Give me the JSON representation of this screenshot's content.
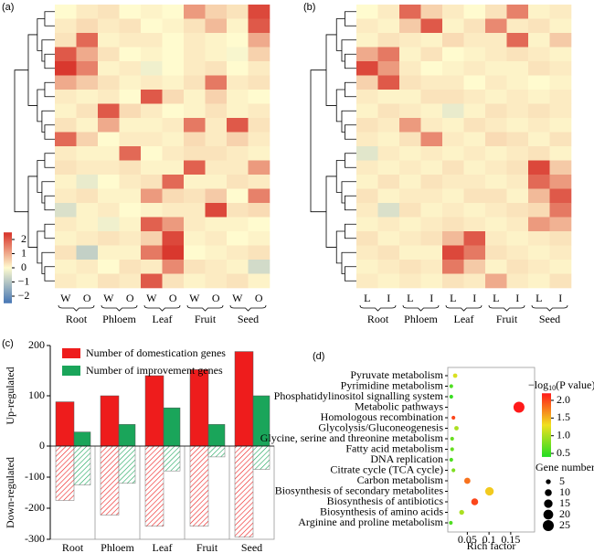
{
  "chart_data": [
    {
      "type": "heatmap",
      "panel_label": "(a)",
      "columns": [
        "W",
        "O",
        "W",
        "O",
        "W",
        "O",
        "W",
        "O",
        "W",
        "O"
      ],
      "groups": [
        "Root",
        "Phloem",
        "Leaf",
        "Fruit",
        "Seed"
      ],
      "values": [
        [
          0,
          0.2,
          0.3,
          0,
          0.1,
          0,
          1.2,
          0.5,
          0.3,
          2.2
        ],
        [
          0.2,
          0.4,
          0.2,
          0.3,
          0,
          0.1,
          0.3,
          0.8,
          0.1,
          2.0
        ],
        [
          0.3,
          1.8,
          0.1,
          0.2,
          0.2,
          0,
          0.2,
          0.1,
          0,
          1.0
        ],
        [
          2.0,
          1.0,
          0.3,
          0,
          0.1,
          0,
          0.2,
          0.1,
          -0.1,
          0.5
        ],
        [
          2.4,
          1.5,
          0.1,
          0.2,
          -0.2,
          0,
          0.2,
          0.3,
          0,
          0.2
        ],
        [
          1.0,
          0.6,
          0.3,
          0.1,
          0.2,
          0.1,
          0.3,
          1.6,
          0.2,
          0.3
        ],
        [
          0.2,
          0.1,
          0.2,
          0,
          2.0,
          0.4,
          0.1,
          0.5,
          0.1,
          0
        ],
        [
          0.1,
          0.3,
          2.0,
          0.4,
          0.2,
          0,
          0.1,
          0.3,
          0.1,
          0.2
        ],
        [
          0.3,
          0.1,
          1.0,
          0.1,
          0.1,
          0.2,
          1.6,
          0.2,
          2.0,
          0.3
        ],
        [
          1.8,
          0.5,
          0,
          0.2,
          0.2,
          0.1,
          0.4,
          0.2,
          0.5,
          0.2
        ],
        [
          0.2,
          0.1,
          0.1,
          1.8,
          0,
          0.2,
          0.3,
          0.3,
          0.2,
          0.1
        ],
        [
          0.3,
          0.2,
          0.2,
          0.3,
          0.1,
          0.1,
          1.9,
          0.2,
          0.2,
          1.2
        ],
        [
          0.1,
          -0.3,
          0,
          0.2,
          0.3,
          1.8,
          0.1,
          0.1,
          0.3,
          0.2
        ],
        [
          0.2,
          0.3,
          0.1,
          0.1,
          1.2,
          0.4,
          0.3,
          0.6,
          0,
          1.5
        ],
        [
          -0.5,
          0.1,
          0.2,
          0,
          0.1,
          0.2,
          0.2,
          2.2,
          0.3,
          0.4
        ],
        [
          0.2,
          0.1,
          -0.2,
          0.1,
          1.9,
          1.2,
          0.2,
          0.1,
          0.1,
          0
        ],
        [
          0.1,
          0.2,
          0.3,
          0.2,
          0.5,
          2.2,
          0.1,
          0.2,
          0,
          0.1
        ],
        [
          0.3,
          -0.8,
          0.1,
          0.1,
          1.6,
          2.4,
          0,
          0.1,
          0.2,
          0.3
        ],
        [
          0.1,
          0.2,
          0,
          0.3,
          0.2,
          1.4,
          0.3,
          0.2,
          0.1,
          -0.6
        ],
        [
          0.2,
          0.1,
          0.3,
          0.2,
          2.0,
          0.3,
          0.1,
          0.2,
          0.3,
          0.1
        ]
      ],
      "colorlim": [
        -2.5,
        2.5
      ],
      "colors": [
        "#4575b4",
        "#fffbcf",
        "#d73027"
      ],
      "colorbar": [
        2,
        1,
        0,
        {
          "value": -1,
          "label": "−1"
        },
        {
          "value": -2,
          "label": "−2"
        }
      ]
    },
    {
      "type": "heatmap",
      "panel_label": "(b)",
      "columns": [
        "L",
        "I",
        "L",
        "I",
        "L",
        "I",
        "L",
        "I",
        "L",
        "I"
      ],
      "groups": [
        "Root",
        "Phloem",
        "Leaf",
        "Fruit",
        "Seed"
      ],
      "values": [
        [
          0,
          0.2,
          1.8,
          0.5,
          0.2,
          0,
          0.3,
          1.5,
          0.1,
          0.2
        ],
        [
          0.2,
          0.1,
          0.6,
          2.0,
          0.1,
          0.3,
          1.4,
          0.2,
          0.3,
          0.1
        ],
        [
          0.1,
          0.3,
          0.2,
          0.1,
          0.4,
          0.2,
          0.2,
          1.8,
          0.1,
          0.6
        ],
        [
          1.0,
          1.6,
          0.1,
          0.3,
          0,
          0.1,
          0.2,
          0.3,
          0.2,
          0.1
        ],
        [
          2.2,
          1.2,
          0.2,
          0,
          0.1,
          0.2,
          0.1,
          0.1,
          0.3,
          0.2
        ],
        [
          0.5,
          2.0,
          0.3,
          0.2,
          0.2,
          0,
          0.2,
          0.1,
          0,
          0.1
        ],
        [
          0.2,
          0.1,
          0.1,
          0.3,
          0.3,
          0.2,
          0.1,
          0.2,
          0.1,
          0.2
        ],
        [
          0.1,
          0.3,
          0.2,
          0.1,
          -0.3,
          0.1,
          0.3,
          0.2,
          0.3,
          0.2
        ],
        [
          0.3,
          0.2,
          1.2,
          0.2,
          0.1,
          0.3,
          0.2,
          0.1,
          0.2,
          0.1
        ],
        [
          0.2,
          0.1,
          0.3,
          1.4,
          0.2,
          0.1,
          0.4,
          0.3,
          0.1,
          0.3
        ],
        [
          -0.4,
          0.2,
          0.1,
          0.2,
          0.1,
          0.2,
          0.1,
          0.2,
          0.3,
          0.1
        ],
        [
          0.2,
          0.1,
          0.2,
          0.1,
          0.3,
          0.1,
          0.2,
          0.3,
          2.2,
          0.6
        ],
        [
          0.1,
          0.3,
          0.1,
          0.3,
          0.2,
          0.2,
          0.1,
          0.2,
          1.8,
          1.2
        ],
        [
          0.3,
          0.1,
          0.2,
          0.2,
          0.1,
          0.3,
          0.3,
          0.1,
          0.8,
          2.0
        ],
        [
          0.2,
          -0.5,
          0.3,
          0.1,
          0.2,
          0.1,
          0.2,
          0.3,
          0.4,
          1.6
        ],
        [
          0.1,
          0.2,
          0.1,
          0.2,
          0.3,
          0.2,
          0.1,
          0.2,
          1.2,
          0.9
        ],
        [
          0.3,
          0.1,
          0.2,
          0.3,
          0.8,
          2.0,
          0.2,
          0.1,
          0.2,
          0.3
        ],
        [
          0.2,
          0.3,
          0.1,
          0.1,
          2.2,
          1.6,
          0.3,
          0.2,
          0.1,
          0.2
        ],
        [
          0.1,
          0.2,
          0.3,
          0.2,
          1.6,
          0.6,
          0.1,
          0.3,
          0.2,
          0.1
        ],
        [
          0.2,
          0.1,
          0.2,
          0.1,
          0.3,
          0.2,
          1.0,
          0.2,
          0.1,
          0.3
        ]
      ],
      "colorlim": [
        -2.5,
        2.5
      ],
      "colors": [
        "#4575b4",
        "#fffbcf",
        "#d73027"
      ]
    },
    {
      "type": "bar",
      "panel_label": "(c)",
      "categories": [
        "Root",
        "Phloem",
        "Leaf",
        "Fruit",
        "Seed"
      ],
      "series": [
        {
          "name": "Number of domestication genes",
          "color": "#ee1c1c",
          "values": [
            88,
            100,
            140,
            152,
            188
          ],
          "down_values": [
            -175,
            -222,
            -258,
            -258,
            -293
          ]
        },
        {
          "name": "Number of improvement genes",
          "color": "#1aa55a",
          "values": [
            28,
            43,
            76,
            43,
            100
          ],
          "down_values": [
            -125,
            -120,
            -80,
            -35,
            -75
          ]
        }
      ],
      "ylim": [
        -300,
        200
      ],
      "yticks": [
        -300,
        -200,
        -100,
        0,
        100,
        200
      ],
      "y_labels": [
        "Up-regulated",
        "Down-regulated"
      ]
    },
    {
      "type": "scatter",
      "panel_label": "(d)",
      "categories": [
        "Pyruvate metabolism",
        "Pyrimidine metabolism",
        "Phosphatidylinositol signalling system",
        "Metabolic pathways",
        "Homologous recombination",
        "Glycolysis/Gluconeogenesis",
        "Glycine, serine and threonine metabolism",
        "Fatty acid metabolism",
        "DNA replication",
        "Citrate cycle (TCA cycle)",
        "Carbon metabolism",
        "Biosynthesis of secondary metabolites",
        "Biosynthesis of antibiotics",
        "Biosynthesis of amino acids",
        "Arginine and proline metabolism"
      ],
      "x": [
        0.022,
        0.013,
        0.013,
        0.169,
        0.018,
        0.025,
        0.015,
        0.015,
        0.013,
        0.018,
        0.05,
        0.101,
        0.067,
        0.037,
        0.012
      ],
      "color_values": [
        1.2,
        0.6,
        0.5,
        2.2,
        2.0,
        1.0,
        0.7,
        0.7,
        0.6,
        0.8,
        1.8,
        1.4,
        2.0,
        1.0,
        0.6
      ],
      "sizes": [
        4,
        3,
        3,
        25,
        3,
        4,
        3,
        3,
        3,
        3,
        8,
        15,
        10,
        5,
        3
      ],
      "xlim": [
        0.005,
        0.205
      ],
      "xticks": [
        0.05,
        0.1,
        0.15
      ],
      "xlabel": "Rich factor",
      "color_title": [
        "−log",
        "10",
        "(P value)"
      ],
      "colorlim": [
        0.4,
        2.2
      ],
      "color_ticks": [
        {
          "value": 2,
          "label": "2.0"
        },
        1.5,
        {
          "value": 1,
          "label": "1.0"
        },
        0.5
      ],
      "colors": [
        "#22dd22",
        "#f0e020",
        "#ff1a1a"
      ],
      "size_title": "Gene number",
      "size_ticks": [
        5,
        10,
        15,
        20,
        25
      ]
    }
  ]
}
